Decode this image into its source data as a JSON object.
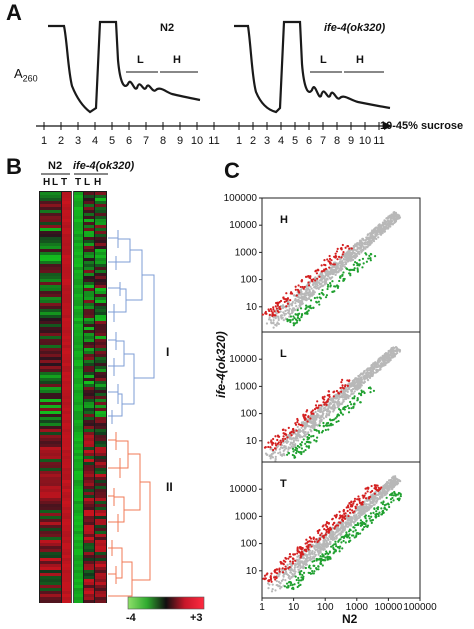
{
  "panels": {
    "a": {
      "letter": "A",
      "ylabel_main": "A",
      "ylabel_sub": "260",
      "left_title": "N2",
      "right_title": "ife-4(ok320)",
      "L": "L",
      "H": "H",
      "fractions": [
        "1",
        "2",
        "3",
        "4",
        "5",
        "6",
        "7",
        "8",
        "9",
        "10",
        "11"
      ],
      "gradient": "10-45% sucrose"
    },
    "b": {
      "letter": "B",
      "group_n2": "N2",
      "group_mut": "ife-4(ok320)",
      "cols_n2": [
        "H",
        "L",
        "T"
      ],
      "cols_mut": [
        "T",
        "L",
        "H"
      ],
      "cluster_1": "I",
      "cluster_2": "II",
      "scale_min": "-4",
      "scale_max": "+3"
    },
    "c": {
      "letter": "C",
      "ylabel": "ife-4(ok320)",
      "xlabel": "N2",
      "y_ticks": [
        "100000",
        "10000",
        "1000",
        "100",
        "10"
      ],
      "x_ticks": [
        "1",
        "10",
        "100",
        "1000",
        "10000",
        "100000"
      ],
      "plots": [
        "H",
        "L",
        "T"
      ]
    }
  },
  "colors": {
    "up": "#d42020",
    "down": "#20a030",
    "neutral": "#b8b8b8",
    "cluster1": "#7d9cd6",
    "cluster2": "#f07a55"
  }
}
